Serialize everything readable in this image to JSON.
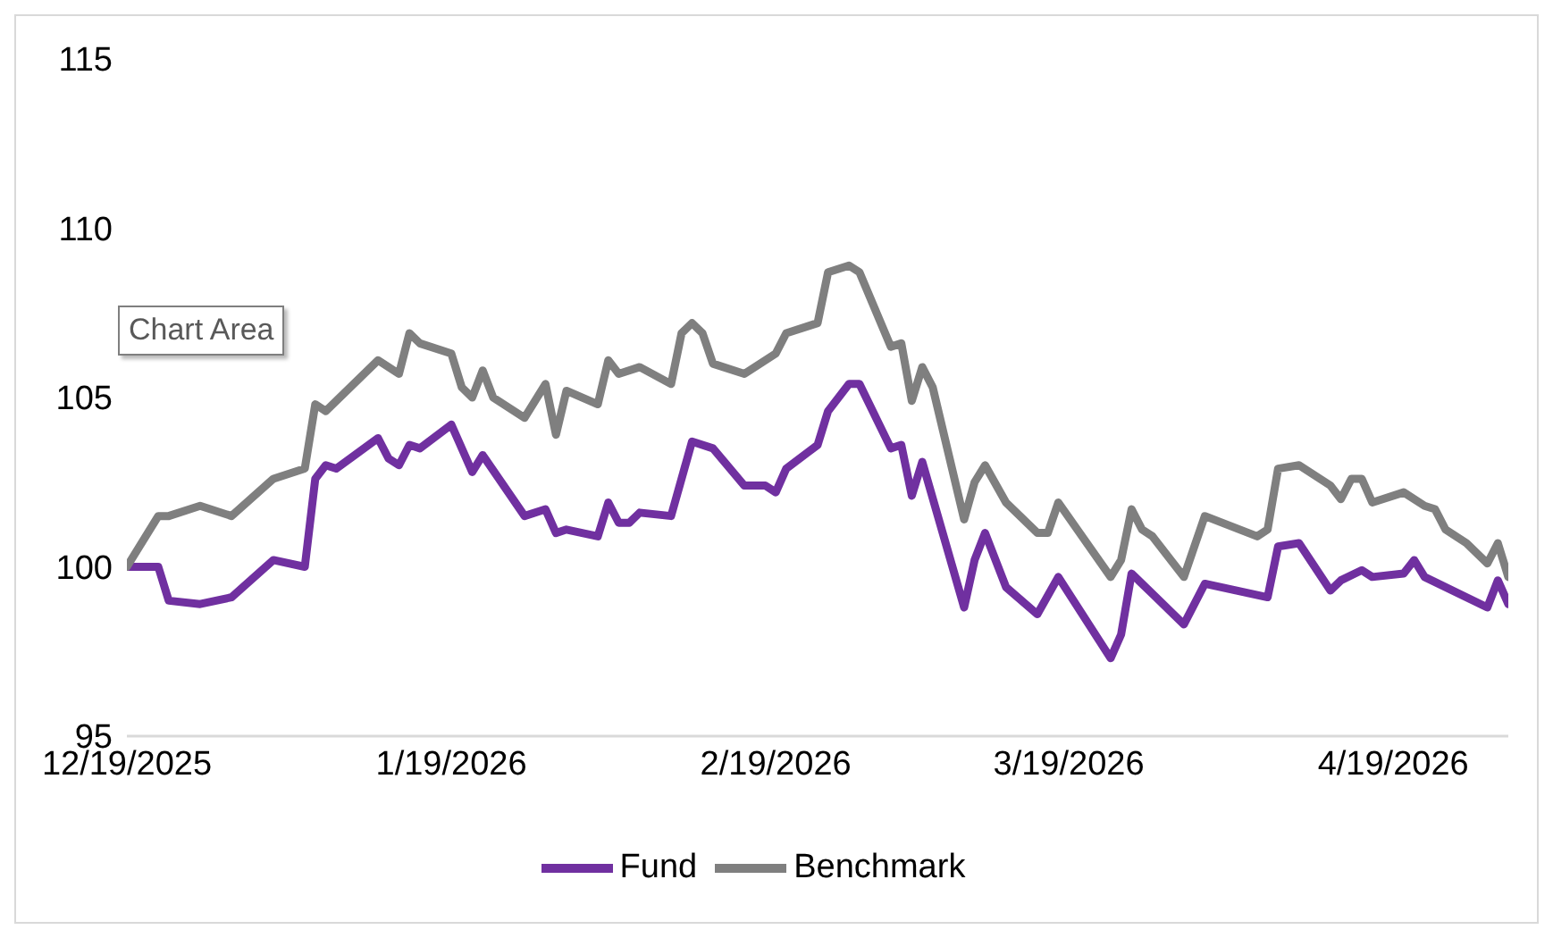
{
  "chart_data": {
    "type": "line",
    "xlim": [
      "2025-12-19",
      "2026-04-30"
    ],
    "xticks": [
      {
        "value": "2025-12-19",
        "label": "12/19/2025"
      },
      {
        "value": "2026-01-19",
        "label": "1/19/2026"
      },
      {
        "value": "2026-02-19",
        "label": "2/19/2026"
      },
      {
        "value": "2026-03-19",
        "label": "3/19/2026"
      },
      {
        "value": "2026-04-19",
        "label": "4/19/2026"
      }
    ],
    "ylim": [
      95,
      115
    ],
    "yticks": [
      95,
      100,
      105,
      110,
      115
    ],
    "grid": false,
    "legend": "bottom",
    "marker": "none",
    "line_style": "solid",
    "annotations": [
      "Chart Area"
    ],
    "series": [
      {
        "name": "Fund",
        "color": "#7030a0",
        "x": [
          "2025-12-19",
          "2025-12-22",
          "2025-12-23",
          "2025-12-26",
          "2025-12-29",
          "2026-01-02",
          "2026-01-05",
          "2026-01-06",
          "2026-01-07",
          "2026-01-08",
          "2026-01-12",
          "2026-01-13",
          "2026-01-14",
          "2026-01-15",
          "2026-01-16",
          "2026-01-19",
          "2026-01-21",
          "2026-01-22",
          "2026-01-26",
          "2026-01-28",
          "2026-01-29",
          "2026-01-30",
          "2026-02-02",
          "2026-02-03",
          "2026-02-04",
          "2026-02-05",
          "2026-02-06",
          "2026-02-09",
          "2026-02-11",
          "2026-02-13",
          "2026-02-16",
          "2026-02-18",
          "2026-02-19",
          "2026-02-20",
          "2026-02-23",
          "2026-02-24",
          "2026-02-26",
          "2026-02-27",
          "2026-03-02",
          "2026-03-03",
          "2026-03-04",
          "2026-03-05",
          "2026-03-09",
          "2026-03-10",
          "2026-03-11",
          "2026-03-13",
          "2026-03-16",
          "2026-03-18",
          "2026-03-23",
          "2026-03-24",
          "2026-03-25",
          "2026-03-27",
          "2026-03-30",
          "2026-04-01",
          "2026-04-07",
          "2026-04-08",
          "2026-04-10",
          "2026-04-13",
          "2026-04-14",
          "2026-04-16",
          "2026-04-17",
          "2026-04-20",
          "2026-04-21",
          "2026-04-22",
          "2026-04-28",
          "2026-04-29",
          "2026-04-30"
        ],
        "values": [
          100.0,
          100.0,
          99.0,
          98.9,
          99.1,
          100.2,
          100.0,
          102.6,
          103.0,
          102.9,
          103.8,
          103.2,
          103.0,
          103.6,
          103.5,
          104.2,
          102.8,
          103.3,
          101.5,
          101.7,
          101.0,
          101.1,
          100.9,
          101.9,
          101.3,
          101.3,
          101.6,
          101.5,
          103.7,
          103.5,
          102.4,
          102.4,
          102.2,
          102.9,
          103.6,
          104.6,
          105.4,
          105.4,
          103.5,
          103.6,
          102.1,
          103.1,
          98.8,
          100.2,
          101.0,
          99.4,
          98.6,
          99.7,
          97.3,
          98.0,
          99.8,
          99.2,
          98.3,
          99.5,
          99.1,
          100.6,
          100.7,
          99.3,
          99.6,
          99.9,
          99.7,
          99.8,
          100.2,
          99.7,
          98.8,
          99.6,
          98.9
        ]
      },
      {
        "name": "Benchmark",
        "color": "#7f7f7f",
        "x": [
          "2025-12-19",
          "2025-12-22",
          "2025-12-23",
          "2025-12-26",
          "2025-12-29",
          "2026-01-02",
          "2026-01-05",
          "2026-01-06",
          "2026-01-07",
          "2026-01-12",
          "2026-01-14",
          "2026-01-15",
          "2026-01-16",
          "2026-01-19",
          "2026-01-20",
          "2026-01-21",
          "2026-01-22",
          "2026-01-23",
          "2026-01-26",
          "2026-01-28",
          "2026-01-29",
          "2026-01-30",
          "2026-02-02",
          "2026-02-03",
          "2026-02-04",
          "2026-02-06",
          "2026-02-09",
          "2026-02-10",
          "2026-02-11",
          "2026-02-12",
          "2026-02-13",
          "2026-02-16",
          "2026-02-19",
          "2026-02-20",
          "2026-02-23",
          "2026-02-24",
          "2026-02-26",
          "2026-02-27",
          "2026-03-02",
          "2026-03-03",
          "2026-03-04",
          "2026-03-05",
          "2026-03-06",
          "2026-03-09",
          "2026-03-10",
          "2026-03-11",
          "2026-03-13",
          "2026-03-16",
          "2026-03-17",
          "2026-03-18",
          "2026-03-23",
          "2026-03-24",
          "2026-03-25",
          "2026-03-26",
          "2026-03-27",
          "2026-03-30",
          "2026-04-01",
          "2026-04-06",
          "2026-04-07",
          "2026-04-08",
          "2026-04-10",
          "2026-04-13",
          "2026-04-14",
          "2026-04-15",
          "2026-04-16",
          "2026-04-17",
          "2026-04-20",
          "2026-04-22",
          "2026-04-23",
          "2026-04-24",
          "2026-04-26",
          "2026-04-28",
          "2026-04-29",
          "2026-04-30"
        ],
        "values": [
          100.0,
          101.5,
          101.5,
          101.8,
          101.5,
          102.6,
          102.9,
          104.8,
          104.6,
          106.1,
          105.7,
          106.9,
          106.6,
          106.3,
          105.3,
          105.0,
          105.8,
          105.0,
          104.4,
          105.4,
          103.9,
          105.2,
          104.8,
          106.1,
          105.7,
          105.9,
          105.4,
          106.9,
          107.2,
          106.9,
          106.0,
          105.7,
          106.3,
          106.9,
          107.2,
          108.7,
          108.9,
          108.7,
          106.5,
          106.6,
          104.9,
          105.9,
          105.3,
          101.4,
          102.5,
          103.0,
          101.9,
          101.0,
          101.0,
          101.9,
          99.7,
          100.2,
          101.7,
          101.1,
          100.9,
          99.7,
          101.5,
          100.9,
          101.1,
          102.9,
          103.0,
          102.4,
          102.0,
          102.6,
          102.6,
          101.9,
          102.2,
          101.8,
          101.7,
          101.1,
          100.7,
          100.1,
          100.7,
          99.7
        ]
      }
    ]
  }
}
